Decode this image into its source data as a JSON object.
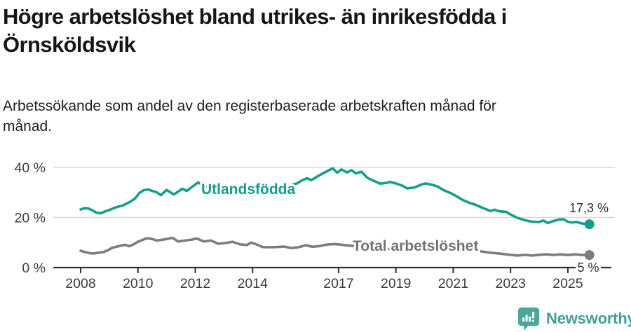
{
  "title": {
    "line1": "Högre arbetslöshet bland utrikes- än inrikesfödda i",
    "line2": "Örnsköldsvik"
  },
  "subtitle": {
    "line1": "Arbetssökande som andel av den registerbaserade arbetskraften månad för",
    "line2": "månad."
  },
  "chart_data": {
    "type": "line",
    "title": "Högre arbetslöshet bland utrikes- än inrikesfödda i Örnsköldsvik",
    "subtitle": "Arbetssökande som andel av den registerbaserade arbetskraften månad för månad.",
    "grid": "horizontal",
    "x_range": [
      2007.4,
      2026.2
    ],
    "y_range": [
      0,
      46
    ],
    "x_ticks": [
      {
        "value": 2008,
        "label": "2008"
      },
      {
        "value": 2010,
        "label": "2010"
      },
      {
        "value": 2012,
        "label": "2012"
      },
      {
        "value": 2014,
        "label": "2014"
      },
      {
        "value": 2017,
        "label": "2017"
      },
      {
        "value": 2019,
        "label": "2019"
      },
      {
        "value": 2021,
        "label": "2021"
      },
      {
        "value": 2023,
        "label": "2023"
      },
      {
        "value": 2025,
        "label": "2025"
      }
    ],
    "y_ticks": [
      {
        "value": 0,
        "label": "0 %"
      },
      {
        "value": 20,
        "label": "20 %"
      },
      {
        "value": 40,
        "label": "40 %"
      }
    ],
    "series": [
      {
        "name": "Utlandsfödda",
        "color": "#159e8c",
        "end_label": "17,3 %",
        "end_value": 17.3,
        "points": [
          [
            2008.0,
            23.2
          ],
          [
            2008.1,
            23.6
          ],
          [
            2008.25,
            23.7
          ],
          [
            2008.4,
            22.9
          ],
          [
            2008.55,
            21.9
          ],
          [
            2008.7,
            21.7
          ],
          [
            2008.85,
            22.4
          ],
          [
            2009.0,
            23.0
          ],
          [
            2009.15,
            23.7
          ],
          [
            2009.3,
            24.3
          ],
          [
            2009.45,
            24.7
          ],
          [
            2009.6,
            25.5
          ],
          [
            2009.75,
            26.4
          ],
          [
            2009.9,
            27.6
          ],
          [
            2010.05,
            29.8
          ],
          [
            2010.2,
            30.9
          ],
          [
            2010.35,
            31.2
          ],
          [
            2010.5,
            30.6
          ],
          [
            2010.65,
            30.1
          ],
          [
            2010.8,
            28.9
          ],
          [
            2011.0,
            31.0
          ],
          [
            2011.25,
            29.2
          ],
          [
            2011.4,
            30.3
          ],
          [
            2011.55,
            31.5
          ],
          [
            2011.7,
            30.6
          ],
          [
            2011.85,
            31.9
          ],
          [
            2012.1,
            34.0
          ],
          [
            2012.3,
            32.6
          ],
          [
            2012.55,
            31.8
          ],
          [
            2012.8,
            31.0
          ],
          [
            2013.05,
            30.3
          ],
          [
            2013.3,
            29.6
          ],
          [
            2013.55,
            30.1
          ],
          [
            2013.8,
            30.6
          ],
          [
            2014.1,
            31.0
          ],
          [
            2014.4,
            31.4
          ],
          [
            2014.7,
            31.8
          ],
          [
            2015.0,
            32.3
          ],
          [
            2015.3,
            32.8
          ],
          [
            2015.55,
            33.6
          ],
          [
            2015.75,
            35.0
          ],
          [
            2015.9,
            35.7
          ],
          [
            2016.05,
            34.9
          ],
          [
            2016.25,
            36.3
          ],
          [
            2016.45,
            37.6
          ],
          [
            2016.65,
            38.8
          ],
          [
            2016.8,
            39.6
          ],
          [
            2016.95,
            37.9
          ],
          [
            2017.1,
            39.2
          ],
          [
            2017.3,
            38.0
          ],
          [
            2017.45,
            38.9
          ],
          [
            2017.6,
            37.6
          ],
          [
            2017.8,
            38.3
          ],
          [
            2018.0,
            35.9
          ],
          [
            2018.2,
            34.8
          ],
          [
            2018.45,
            33.5
          ],
          [
            2018.65,
            33.8
          ],
          [
            2018.8,
            34.2
          ],
          [
            2019.0,
            33.6
          ],
          [
            2019.2,
            32.8
          ],
          [
            2019.4,
            31.6
          ],
          [
            2019.65,
            32.0
          ],
          [
            2019.9,
            33.2
          ],
          [
            2020.05,
            33.6
          ],
          [
            2020.25,
            33.1
          ],
          [
            2020.45,
            32.4
          ],
          [
            2020.65,
            31.0
          ],
          [
            2020.9,
            29.8
          ],
          [
            2021.1,
            28.6
          ],
          [
            2021.3,
            27.2
          ],
          [
            2021.55,
            25.9
          ],
          [
            2021.8,
            25.0
          ],
          [
            2022.05,
            23.7
          ],
          [
            2022.3,
            22.6
          ],
          [
            2022.45,
            23.1
          ],
          [
            2022.6,
            22.5
          ],
          [
            2022.85,
            22.2
          ],
          [
            2023.0,
            21.2
          ],
          [
            2023.25,
            19.8
          ],
          [
            2023.5,
            18.9
          ],
          [
            2023.75,
            18.3
          ],
          [
            2024.0,
            18.2
          ],
          [
            2024.15,
            18.8
          ],
          [
            2024.3,
            17.8
          ],
          [
            2024.5,
            18.6
          ],
          [
            2024.7,
            19.2
          ],
          [
            2024.85,
            19.3
          ],
          [
            2025.0,
            18.3
          ],
          [
            2025.15,
            18.0
          ],
          [
            2025.3,
            18.2
          ],
          [
            2025.5,
            17.6
          ],
          [
            2025.75,
            17.3
          ]
        ]
      },
      {
        "name": "Total arbetslöshet",
        "color": "#7c7d80",
        "end_label": "5 %",
        "end_value": 5.0,
        "points": [
          [
            2008.0,
            6.7
          ],
          [
            2008.15,
            6.2
          ],
          [
            2008.3,
            5.8
          ],
          [
            2008.45,
            5.6
          ],
          [
            2008.6,
            5.9
          ],
          [
            2008.8,
            6.2
          ],
          [
            2008.95,
            6.9
          ],
          [
            2009.1,
            7.9
          ],
          [
            2009.35,
            8.6
          ],
          [
            2009.55,
            9.1
          ],
          [
            2009.7,
            8.5
          ],
          [
            2009.85,
            9.3
          ],
          [
            2010.0,
            10.3
          ],
          [
            2010.15,
            11.0
          ],
          [
            2010.3,
            11.7
          ],
          [
            2010.5,
            11.4
          ],
          [
            2010.65,
            10.8
          ],
          [
            2010.85,
            11.1
          ],
          [
            2011.05,
            11.5
          ],
          [
            2011.2,
            11.9
          ],
          [
            2011.4,
            10.4
          ],
          [
            2011.65,
            10.8
          ],
          [
            2011.9,
            11.2
          ],
          [
            2012.05,
            11.6
          ],
          [
            2012.3,
            10.4
          ],
          [
            2012.55,
            10.8
          ],
          [
            2012.8,
            9.5
          ],
          [
            2013.05,
            9.8
          ],
          [
            2013.3,
            10.3
          ],
          [
            2013.55,
            9.3
          ],
          [
            2013.8,
            9.0
          ],
          [
            2013.95,
            10.0
          ],
          [
            2014.1,
            9.4
          ],
          [
            2014.35,
            8.2
          ],
          [
            2014.6,
            8.1
          ],
          [
            2014.85,
            8.2
          ],
          [
            2015.1,
            8.4
          ],
          [
            2015.35,
            7.8
          ],
          [
            2015.6,
            8.1
          ],
          [
            2015.85,
            8.9
          ],
          [
            2016.1,
            8.3
          ],
          [
            2016.35,
            8.6
          ],
          [
            2016.6,
            9.2
          ],
          [
            2016.85,
            9.4
          ],
          [
            2017.05,
            9.2
          ],
          [
            2017.25,
            8.9
          ],
          [
            2017.45,
            8.7
          ],
          [
            2017.8,
            8.2
          ],
          [
            2018.1,
            7.9
          ],
          [
            2018.5,
            7.6
          ],
          [
            2018.9,
            7.3
          ],
          [
            2019.3,
            7.2
          ],
          [
            2019.7,
            7.5
          ],
          [
            2020.1,
            8.6
          ],
          [
            2020.4,
            9.4
          ],
          [
            2020.7,
            9.1
          ],
          [
            2021.1,
            8.3
          ],
          [
            2021.5,
            7.4
          ],
          [
            2021.9,
            6.6
          ],
          [
            2022.25,
            6.0
          ],
          [
            2022.5,
            5.7
          ],
          [
            2022.75,
            5.4
          ],
          [
            2023.0,
            5.1
          ],
          [
            2023.25,
            4.8
          ],
          [
            2023.5,
            5.1
          ],
          [
            2023.75,
            4.8
          ],
          [
            2024.0,
            5.1
          ],
          [
            2024.25,
            5.3
          ],
          [
            2024.5,
            5.0
          ],
          [
            2024.75,
            5.3
          ],
          [
            2025.0,
            5.0
          ],
          [
            2025.25,
            5.3
          ],
          [
            2025.5,
            5.0
          ],
          [
            2025.75,
            5.0
          ]
        ]
      }
    ]
  },
  "colors": {
    "accent_teal": "#159e8c",
    "series_gray": "#7c7d80",
    "gridline": "#d8d8d8",
    "axis": "#2f2f2f",
    "logo_teal": "#4ba69b",
    "brand_text": "#3fa096"
  },
  "footer": {
    "brand": "Newsworthy",
    "logo_icon": "bar-chart-speech-bubble"
  }
}
